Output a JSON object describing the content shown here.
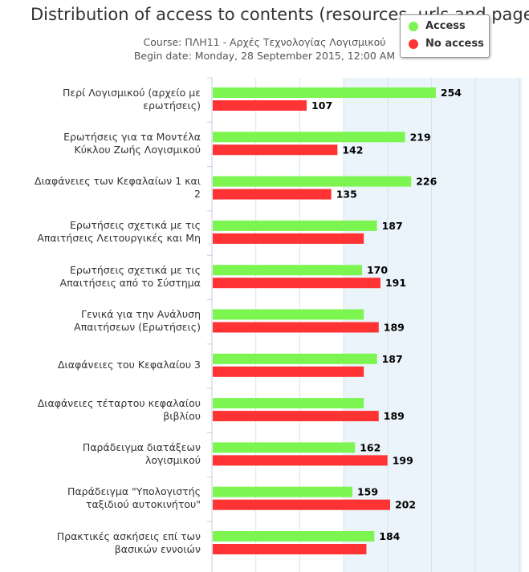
{
  "chart_data": {
    "type": "bar",
    "orientation": "horizontal",
    "title": "Distribution of access to contents (resources, urls and pages)",
    "subtitle_course": "Course: ΠΛΗ11 - Αρχές Τεχνολογίας Λογισμικού",
    "subtitle_date": "Begin date: Monday, 28 September 2015, 12:00 AM",
    "categories": [
      "Περί Λογισμικού (αρχείο με ερωτήσεις)",
      "Ερωτήσεις για τα Μοντέλα Κύκλου Ζωής Λογισμικού",
      "Διαφάνειες των Κεφαλαίων 1 και 2",
      "Ερωτήσεις σχετικά με τις Απαιτήσεις Λειτουργικές και Μη",
      "Ερωτήσεις σχετικά με τις Απαιτήσεις από το Σύστημα",
      "Γενικά για την Ανάλυση Απαιτήσεων (Ερωτήσεις)",
      "Διαφάνειες του Κεφαλαίου 3",
      "Διαφάνειες τέταρτου κεφαλαίου βιβλίου",
      "Παράδειγμα διατάξεων λογισμικού",
      "Παράδειγμα \"Υπολογιστής ταξιδιού αυτοκινήτου\"",
      "Πρακτικές ασκήσεις επί των βασικών εννοιών"
    ],
    "series": [
      {
        "name": "Access",
        "color": "#7cf550",
        "values": [
          254,
          219,
          226,
          187,
          170,
          172,
          187,
          172,
          162,
          159,
          184
        ],
        "labels": [
          "254",
          "219",
          "226",
          "187",
          "170",
          "",
          "187",
          "",
          "162",
          "159",
          "184"
        ]
      },
      {
        "name": "No access",
        "color": "#ff3333",
        "values": [
          107,
          142,
          135,
          172,
          191,
          189,
          172,
          189,
          199,
          202,
          175
        ],
        "labels": [
          "107",
          "142",
          "135",
          "",
          "191",
          "189",
          "",
          "189",
          "199",
          "202",
          ""
        ]
      }
    ],
    "xlim": [
      0,
      350
    ],
    "grid": true,
    "legend": "top-right"
  }
}
